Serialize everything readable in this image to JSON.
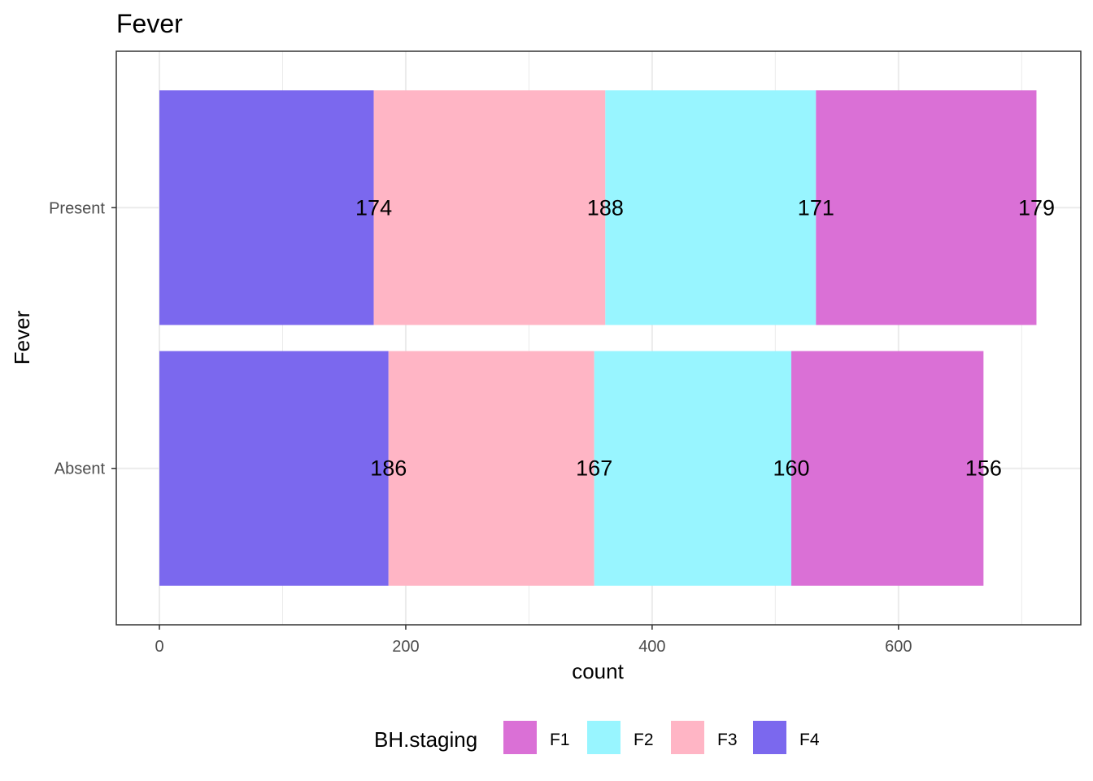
{
  "chart_data": {
    "type": "bar",
    "orientation": "horizontal",
    "stacked": true,
    "title": "Fever",
    "xlabel": "count",
    "ylabel": "Fever",
    "categories": [
      "Absent",
      "Present"
    ],
    "x_ticks": [
      0,
      200,
      400,
      600
    ],
    "xlim": [
      -35,
      748
    ],
    "grid": true,
    "stack_order_from_left": [
      "F4",
      "F3",
      "F2",
      "F1"
    ],
    "series": [
      {
        "name": "F1",
        "color": "#DA70D6",
        "values": [
          156,
          179
        ]
      },
      {
        "name": "F2",
        "color": "#98F5FF",
        "values": [
          160,
          171
        ]
      },
      {
        "name": "F3",
        "color": "#FFB5C5",
        "values": [
          167,
          188
        ]
      },
      {
        "name": "F4",
        "color": "#7B68EE",
        "values": [
          186,
          174
        ]
      }
    ],
    "legend": {
      "title": "BH.staging",
      "position": "bottom",
      "entries": [
        "F1",
        "F2",
        "F3",
        "F4"
      ]
    }
  }
}
